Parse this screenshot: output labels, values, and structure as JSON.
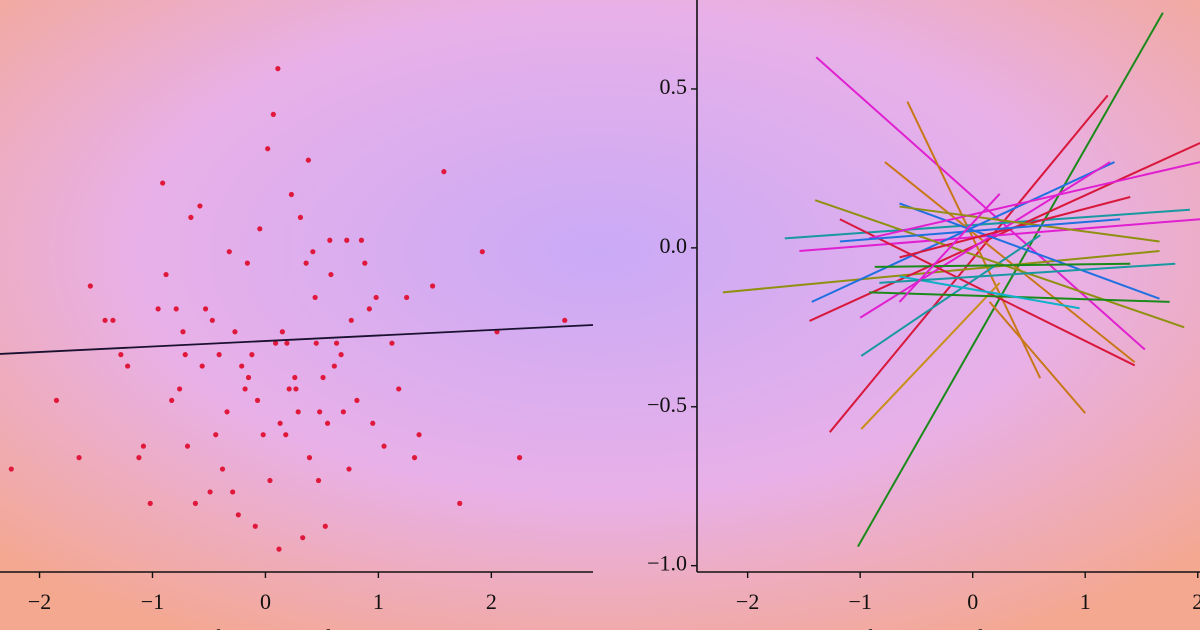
{
  "chart_data": [
    {
      "type": "scatter",
      "color": "#e0183c",
      "x_label": "Subject-centred test score",
      "x": [
        0.15,
        -0.32,
        0.48,
        -0.71,
        0.92,
        -1.12,
        0.27,
        -0.05,
        0.63,
        -0.44,
        1.25,
        -0.88,
        0.04,
        0.36,
        -0.21,
        0.81,
        -1.42,
        0.55,
        -0.62,
        0.19,
        1.58,
        -0.15,
        0.72,
        -0.95,
        0.11,
        -0.38,
        0.44,
        1.05,
        -0.58,
        0.29,
        -1.65,
        0.67,
        -0.09,
        0.88,
        -0.27,
        1.36,
        -0.76,
        0.02,
        0.51,
        -1.22,
        0.23,
        1.92,
        -0.49,
        0.39,
        -0.12,
        0.76,
        -0.83,
        0.58,
        -2.25,
        0.33,
        -0.66,
        1.12,
        -0.34,
        0.07,
        0.95,
        -1.02,
        0.42,
        -0.18,
        1.48,
        -0.53,
        0.18,
        2.25,
        -0.91,
        0.61,
        -0.24,
        0.85,
        -1.35,
        0.09,
        0.47,
        -0.69,
        1.18,
        -0.07,
        0.31,
        -1.55,
        0.74,
        -0.41,
        2.05,
        -0.16,
        0.53,
        -0.79,
        0.26,
        1.72,
        -1.08,
        0.13,
        -0.47,
        0.98,
        -0.29,
        0.69,
        -1.28,
        0.38,
        2.65,
        -0.56,
        0.21,
        -0.02,
        1.32,
        -0.73,
        0.57,
        -1.85,
        0.45,
        0.12
      ],
      "values": [
        -0.4,
        0.3,
        -1.1,
        -0.6,
        -0.2,
        -1.5,
        -0.9,
        0.5,
        -0.5,
        -1.3,
        -0.1,
        0.1,
        -1.7,
        0.2,
        -0.7,
        -1.0,
        -0.3,
        -1.2,
        -1.9,
        -0.5,
        1.0,
        -0.8,
        0.4,
        -0.2,
        1.9,
        -1.6,
        -0.1,
        -1.4,
        0.7,
        -1.1,
        -1.5,
        -0.6,
        -2.1,
        0.2,
        -0.4,
        -1.3,
        -0.9,
        1.2,
        -0.8,
        -0.7,
        0.8,
        0.3,
        -1.8,
        -1.5,
        -0.6,
        -0.3,
        -1.0,
        0.1,
        -1.6,
        -2.2,
        0.6,
        -0.5,
        -1.1,
        1.5,
        -1.2,
        -1.9,
        0.3,
        -0.9,
        0.0,
        -0.2,
        -1.3,
        -1.5,
        0.9,
        -0.7,
        -2.0,
        0.4,
        -0.3,
        -0.5,
        -1.7,
        -1.4,
        -0.9,
        -1.0,
        0.6,
        0.0,
        -1.6,
        -0.6,
        -0.4,
        0.2,
        -2.1,
        -0.2,
        -0.8,
        -1.9,
        -1.4,
        -1.2,
        -0.3,
        -0.1,
        -1.8,
        -1.1,
        -0.6,
        1.1,
        -0.3,
        -0.7,
        -0.9,
        -1.3,
        -1.5,
        -0.4,
        0.4,
        -1.0,
        -0.5,
        -2.3
      ],
      "regression": {
        "color": "#1a1030",
        "x": [
          -2.35,
          2.9
        ],
        "values": [
          -0.594,
          -0.341
        ]
      },
      "xlim": [
        -2.35,
        2.9
      ],
      "ylim": [
        -2.5,
        2.5
      ],
      "xticks": [
        {
          "value": -2,
          "label": "−2"
        },
        {
          "value": -1,
          "label": "−1"
        },
        0,
        1,
        2
      ]
    },
    {
      "type": "line",
      "x_label": "Subject-centred test score",
      "series": [
        {
          "color": "#1a8a1a",
          "x": [
            -1.02,
            1.69
          ],
          "values": [
            -0.94,
            0.74
          ]
        },
        {
          "color": "#e020d0",
          "x": [
            -1.39,
            1.53
          ],
          "values": [
            0.6,
            -0.32
          ]
        },
        {
          "color": "#d8183c",
          "x": [
            -1.27,
            1.2
          ],
          "values": [
            -0.58,
            0.48
          ]
        },
        {
          "color": "#c87818",
          "x": [
            -0.58,
            0.6
          ],
          "values": [
            0.46,
            -0.41
          ]
        },
        {
          "color": "#c89018",
          "x": [
            -0.99,
            0.24
          ],
          "values": [
            -0.57,
            -0.11
          ]
        },
        {
          "color": "#c87818",
          "x": [
            0.15,
            1.0
          ],
          "values": [
            -0.17,
            -0.52
          ]
        },
        {
          "color": "#909010",
          "x": [
            -2.22,
            1.66
          ],
          "values": [
            -0.14,
            -0.01
          ]
        },
        {
          "color": "#1898a0",
          "x": [
            -1.67,
            1.93
          ],
          "values": [
            0.03,
            0.12
          ]
        },
        {
          "color": "#d8183c",
          "x": [
            -1.45,
            2.02
          ],
          "values": [
            -0.23,
            0.33
          ]
        },
        {
          "color": "#e020d0",
          "x": [
            -1.54,
            2.02
          ],
          "values": [
            -0.01,
            0.09
          ]
        },
        {
          "color": "#2070e0",
          "x": [
            -1.43,
            1.26
          ],
          "values": [
            -0.17,
            0.27
          ]
        },
        {
          "color": "#c87818",
          "x": [
            -0.78,
            1.44
          ],
          "values": [
            0.27,
            -0.36
          ]
        },
        {
          "color": "#1898a0",
          "x": [
            -0.99,
            0.6
          ],
          "values": [
            -0.34,
            0.04
          ]
        },
        {
          "color": "#909010",
          "x": [
            -1.4,
            1.88
          ],
          "values": [
            0.15,
            -0.25
          ]
        },
        {
          "color": "#e020d0",
          "x": [
            -1.0,
            1.22
          ],
          "values": [
            -0.22,
            0.27
          ]
        },
        {
          "color": "#d8183c",
          "x": [
            -1.18,
            1.44
          ],
          "values": [
            0.09,
            -0.37
          ]
        },
        {
          "color": "#1a8a1a",
          "x": [
            -0.92,
            1.75
          ],
          "values": [
            -0.14,
            -0.17
          ]
        },
        {
          "color": "#2070e0",
          "x": [
            -0.65,
            1.66
          ],
          "values": [
            0.14,
            -0.16
          ]
        },
        {
          "color": "#10b0c8",
          "x": [
            -0.65,
            0.95
          ],
          "values": [
            -0.09,
            -0.19
          ]
        },
        {
          "color": "#e020d0",
          "x": [
            -0.92,
            2.02
          ],
          "values": [
            0.03,
            0.27
          ]
        },
        {
          "color": "#d8183c",
          "x": [
            -0.65,
            1.4
          ],
          "values": [
            -0.03,
            0.16
          ]
        },
        {
          "color": "#1898a0",
          "x": [
            -0.83,
            1.8
          ],
          "values": [
            -0.11,
            -0.05
          ]
        },
        {
          "color": "#909010",
          "x": [
            -0.65,
            1.66
          ],
          "values": [
            0.13,
            0.02
          ]
        },
        {
          "color": "#1a8a1a",
          "x": [
            -0.87,
            1.4
          ],
          "values": [
            -0.06,
            -0.05
          ]
        },
        {
          "color": "#2070e0",
          "x": [
            -1.18,
            1.31
          ],
          "values": [
            0.02,
            0.09
          ]
        },
        {
          "color": "#e020d0",
          "x": [
            -0.65,
            0.24
          ],
          "values": [
            -0.17,
            0.17
          ]
        }
      ],
      "xlim": [
        -2.45,
        2.02
      ],
      "ylim": [
        -1.02,
        0.78
      ],
      "xticks": [
        {
          "value": -2,
          "label": "−2"
        },
        {
          "value": -1,
          "label": "−1"
        },
        0,
        1,
        2
      ],
      "yticks": [
        {
          "value": 0.5,
          "label": "0.5"
        },
        {
          "value": 0,
          "label": "0.0"
        },
        {
          "value": -0.5,
          "label": "−0.5"
        },
        {
          "value": -1,
          "label": "−1.0"
        }
      ]
    }
  ]
}
